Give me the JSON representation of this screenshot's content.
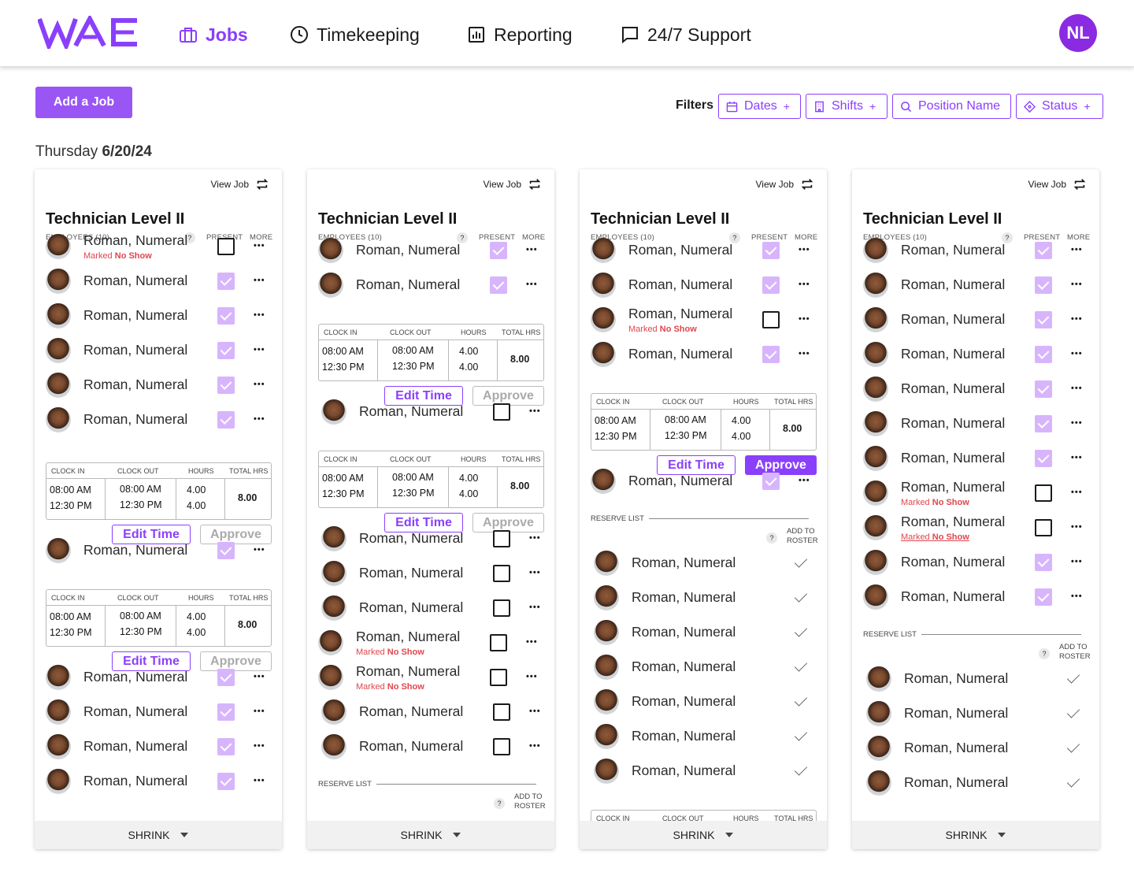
{
  "brand": {
    "logo_text": "WAE",
    "accent": "#8a3ffc"
  },
  "nav": {
    "items": [
      {
        "label": "Jobs",
        "icon": "briefcase-icon",
        "active": true
      },
      {
        "label": "Timekeeping",
        "icon": "clock-icon",
        "active": false
      },
      {
        "label": "Reporting",
        "icon": "chart-icon",
        "active": false
      },
      {
        "label": "24/7 Support",
        "icon": "chat-icon",
        "active": false
      }
    ],
    "user_initials": "NL"
  },
  "toolbar": {
    "add_job": "Add a Job",
    "filters_label": "Filters",
    "filters": [
      {
        "label": "Dates",
        "icon": "calendar-icon"
      },
      {
        "label": "Shifts",
        "icon": "building-icon"
      },
      {
        "label": "Position Name",
        "icon": "search-icon"
      },
      {
        "label": "Status",
        "icon": "tag-icon"
      }
    ]
  },
  "date": {
    "weekday": "Thursday",
    "date": "6/20/24"
  },
  "labels": {
    "view_job": "View Job",
    "employees": "EMPLOYEES (10)",
    "present": "PRESENT",
    "more": "MORE",
    "help": "?",
    "clock_in": "CLOCK IN",
    "clock_out": "CLOCK OUT",
    "hours": "HOURS",
    "total_hrs": "TOTAL HRS",
    "edit_time": "Edit Time",
    "approve": "Approve",
    "reserve_list": "RESERVE LIST",
    "add_to_roster": "ADD TO ROSTER",
    "shrink": "SHRINK",
    "marked": "Marked",
    "no_show": "No Show"
  },
  "time_entry": {
    "in1": "08:00 AM",
    "in2": "12:30 PM",
    "out1": "08:00 AM",
    "out2": "12:30 PM",
    "h1": "4.00",
    "h2": "4.00",
    "total": "8.00"
  },
  "cards": [
    {
      "title": "Technician Level II",
      "employee_name": "Roman, Numeral"
    },
    {
      "title": "Technician Level II",
      "employee_name": "Roman, Numeral"
    },
    {
      "title": "Technician Level II",
      "employee_name": "Roman, Numeral"
    },
    {
      "title": "Technician Level II",
      "employee_name": "Roman, Numeral"
    }
  ]
}
